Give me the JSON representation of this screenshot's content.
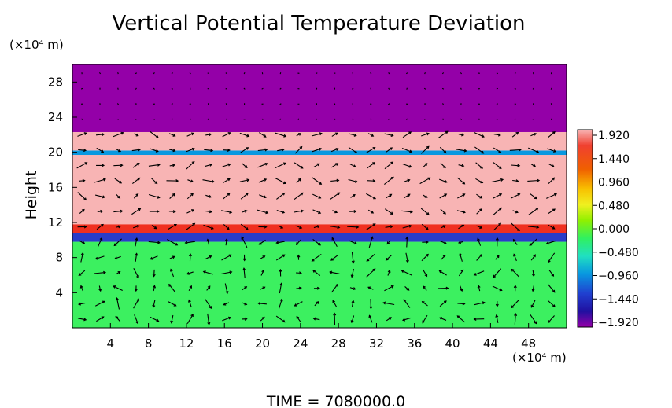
{
  "chart_data": {
    "type": "heatmap",
    "title": "Vertical Potential Temperature Deviation",
    "ylabel": "Height",
    "y_unit": "(×10⁴ m)",
    "x_unit": "(×10⁴ m)",
    "footer": "TIME  =  7080000.0",
    "xlim": [
      0,
      52
    ],
    "ylim": [
      0,
      30
    ],
    "x_ticks": [
      4,
      8,
      12,
      16,
      20,
      24,
      28,
      32,
      36,
      40,
      44,
      48
    ],
    "y_ticks": [
      4,
      8,
      12,
      16,
      20,
      24,
      28
    ],
    "colorbar": {
      "ticks": [
        "1.920",
        "1.440",
        "0.960",
        "0.480",
        "0.000",
        "−0.480",
        "−0.960",
        "−1.440",
        "−1.920"
      ],
      "range": [
        -1.92,
        1.92
      ]
    },
    "layers": [
      {
        "y": [
          0,
          9.8
        ],
        "value": 0.05,
        "color": "#3cf060"
      },
      {
        "y": [
          9.8,
          10.8
        ],
        "value": -1.4,
        "color": "#2a3cc8"
      },
      {
        "y": [
          10.8,
          11.8
        ],
        "value": 1.6,
        "color": "#f03020"
      },
      {
        "y": [
          11.8,
          19.7
        ],
        "value": 1.92,
        "color": "#f8b4b4"
      },
      {
        "y": [
          19.7,
          20.2
        ],
        "value": -0.5,
        "color": "#0898e0"
      },
      {
        "y": [
          20.2,
          22.3
        ],
        "value": 1.92,
        "color": "#f8b4b4"
      },
      {
        "y": [
          22.3,
          30
        ],
        "value": -1.92,
        "color": "#9400a8"
      }
    ]
  }
}
